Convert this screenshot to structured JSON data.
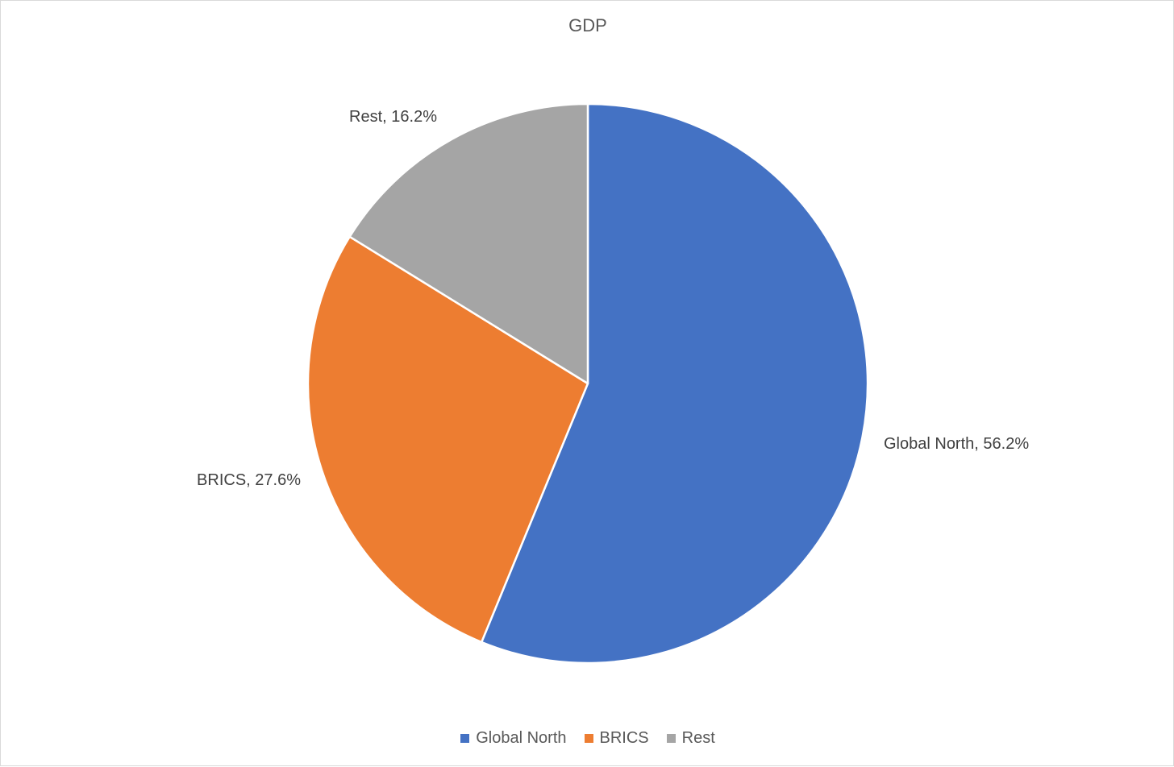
{
  "chart_data": {
    "type": "pie",
    "title": "GDP",
    "legend_position": "bottom",
    "series": [
      {
        "slices": [
          {
            "category": "Global North",
            "value": 56.2,
            "label": "Global North, 56.2%",
            "color": "#4472C4"
          },
          {
            "category": "BRICS",
            "value": 27.6,
            "label": "BRICS, 27.6%",
            "color": "#ED7D31"
          },
          {
            "category": "Rest",
            "value": 16.2,
            "label": "Rest, 16.2%",
            "color": "#A5A5A5"
          }
        ]
      }
    ],
    "legend": [
      {
        "label": "Global North",
        "color": "#4472C4"
      },
      {
        "label": "BRICS",
        "color": "#ED7D31"
      },
      {
        "label": "Rest",
        "color": "#A5A5A5"
      }
    ]
  }
}
